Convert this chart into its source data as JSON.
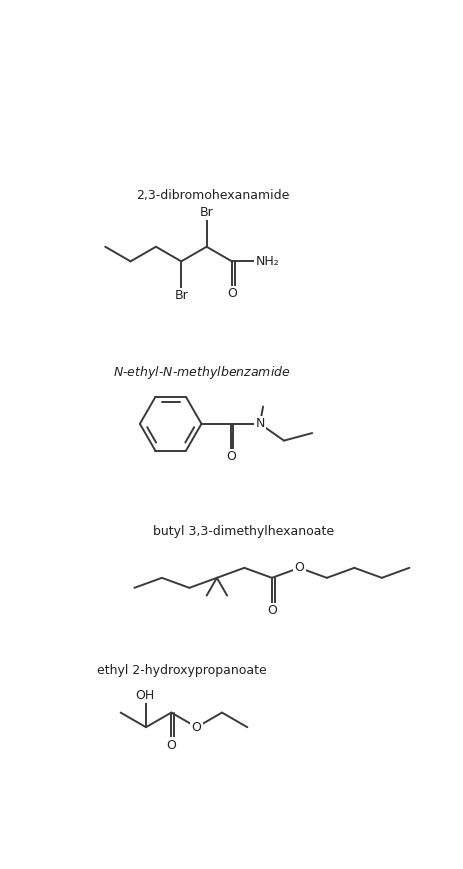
{
  "bg_color": "#ffffff",
  "line_color": "#3a3a3a",
  "text_color": "#222222",
  "line_width": 1.4,
  "font_size_label": 9,
  "font_size_atom": 9,
  "structures": [
    {
      "name": "ethyl 2-hydroxypropanoate"
    },
    {
      "name": "butyl 3,3-dimethylhexanoate"
    },
    {
      "name": "N-ethyl-N-methylbenzamide"
    },
    {
      "name": "2,3-dibromohexanamide"
    }
  ]
}
